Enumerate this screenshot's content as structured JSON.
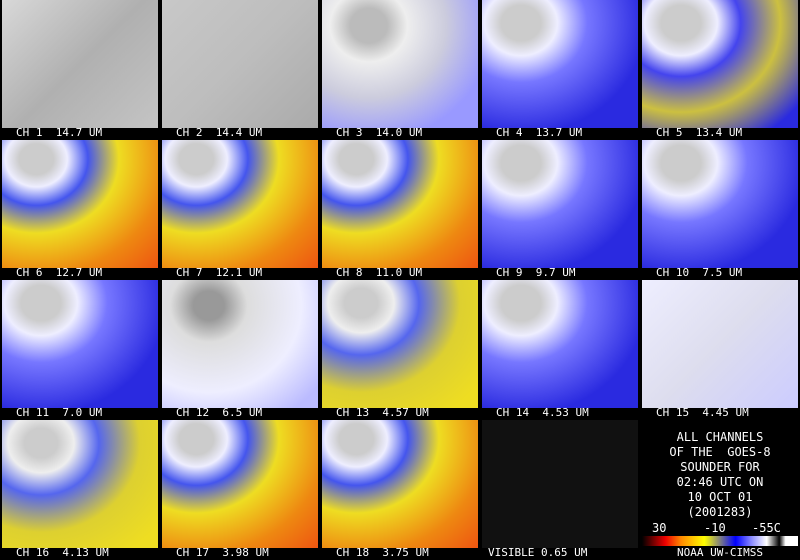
{
  "panels": [
    "CH 1  14.7 UM",
    "CH 2  14.4 UM",
    "CH 3  14.0 UM",
    "CH 4  13.7 UM",
    "CH 5  13.4 UM",
    "CH 6  12.7 UM",
    "CH 7  12.1 UM",
    "CH 8  11.0 UM",
    "CH 9  9.7 UM",
    "CH 10  7.5 UM",
    "CH 11  7.0 UM",
    "CH 12  6.5 UM",
    "CH 13  4.57 UM",
    "CH 14  4.53 UM",
    "CH 15  4.45 UM",
    "CH 16  4.13 UM",
    "CH 17  3.98 UM",
    "CH 18  3.75 UM",
    "VISIBLE 0.65 UM"
  ],
  "info": {
    "lines": [
      "ALL CHANNELS",
      "OF THE  GOES-8",
      "SOUNDER FOR",
      "02:46 UTC ON",
      "10 OCT 01",
      "(2001283)"
    ],
    "scale_labels": [
      "30",
      "-10",
      "-55C"
    ],
    "credit": "NOAA UW-CIMSS"
  }
}
